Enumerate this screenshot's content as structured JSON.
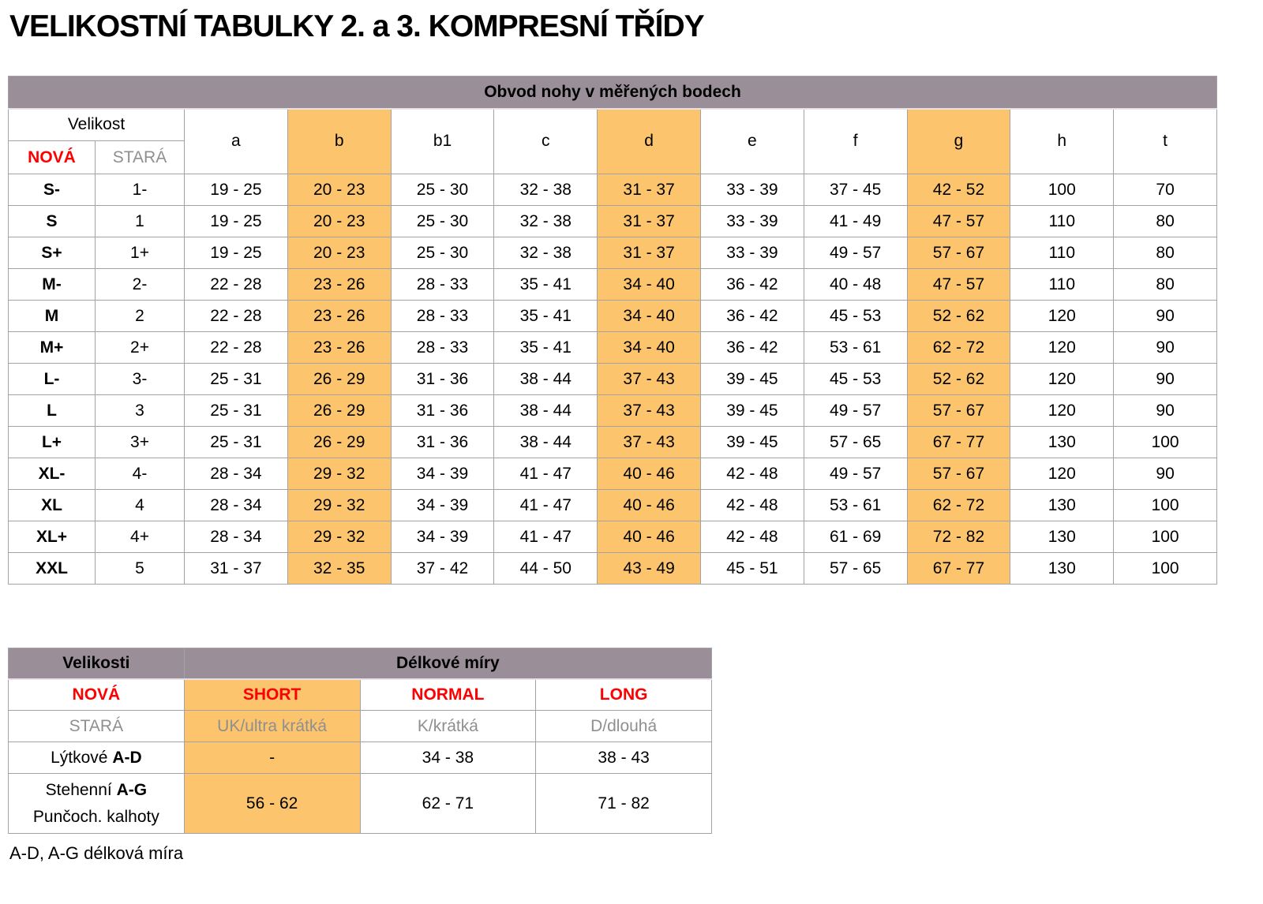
{
  "title": "VELIKOSTNÍ TABULKY 2. a 3. KOMPRESNÍ TŘÍDY",
  "colors": {
    "header_mauve": "#9a8f98",
    "highlight_orange": "#fbc46d",
    "new_red": "#ff0000",
    "old_gray": "#8f8f8f"
  },
  "table1": {
    "title": "Obvod nohy v měřených bodech",
    "size_header": "Velikost",
    "new_label": "NOVÁ",
    "old_label": "STARÁ",
    "columns": [
      {
        "key": "a",
        "highlight": false
      },
      {
        "key": "b",
        "highlight": true
      },
      {
        "key": "b1",
        "highlight": false
      },
      {
        "key": "c",
        "highlight": false
      },
      {
        "key": "d",
        "highlight": true
      },
      {
        "key": "e",
        "highlight": false
      },
      {
        "key": "f",
        "highlight": false
      },
      {
        "key": "g",
        "highlight": true
      },
      {
        "key": "h",
        "highlight": false
      },
      {
        "key": "t",
        "highlight": false
      }
    ],
    "rows": [
      {
        "new": "S-",
        "old": "1-",
        "values": [
          "19 - 25",
          "20 - 23",
          "25 - 30",
          "32 - 38",
          "31 - 37",
          "33 - 39",
          "37 - 45",
          "42 - 52",
          "100",
          "70"
        ]
      },
      {
        "new": "S",
        "old": "1",
        "values": [
          "19 - 25",
          "20 - 23",
          "25 - 30",
          "32 - 38",
          "31 - 37",
          "33 - 39",
          "41 - 49",
          "47 - 57",
          "110",
          "80"
        ]
      },
      {
        "new": "S+",
        "old": "1+",
        "values": [
          "19 - 25",
          "20 - 23",
          "25 - 30",
          "32 - 38",
          "31 - 37",
          "33 - 39",
          "49 - 57",
          "57 - 67",
          "110",
          "80"
        ]
      },
      {
        "new": "M-",
        "old": "2-",
        "values": [
          "22 - 28",
          "23 - 26",
          "28 - 33",
          "35 - 41",
          "34 - 40",
          "36 - 42",
          "40 - 48",
          "47 - 57",
          "110",
          "80"
        ]
      },
      {
        "new": "M",
        "old": "2",
        "values": [
          "22 - 28",
          "23 - 26",
          "28 - 33",
          "35 - 41",
          "34 - 40",
          "36 - 42",
          "45 - 53",
          "52 - 62",
          "120",
          "90"
        ]
      },
      {
        "new": "M+",
        "old": "2+",
        "values": [
          "22 - 28",
          "23 - 26",
          "28 - 33",
          "35 - 41",
          "34 - 40",
          "36 - 42",
          "53 - 61",
          "62 - 72",
          "120",
          "90"
        ]
      },
      {
        "new": "L-",
        "old": "3-",
        "values": [
          "25 - 31",
          "26 - 29",
          "31 - 36",
          "38 - 44",
          "37 - 43",
          "39 - 45",
          "45 - 53",
          "52 - 62",
          "120",
          "90"
        ]
      },
      {
        "new": "L",
        "old": "3",
        "values": [
          "25 - 31",
          "26 - 29",
          "31 - 36",
          "38 - 44",
          "37 - 43",
          "39 - 45",
          "49 - 57",
          "57 - 67",
          "120",
          "90"
        ]
      },
      {
        "new": "L+",
        "old": "3+",
        "values": [
          "25 - 31",
          "26 - 29",
          "31 - 36",
          "38 - 44",
          "37 - 43",
          "39 - 45",
          "57 - 65",
          "67 - 77",
          "130",
          "100"
        ]
      },
      {
        "new": "XL-",
        "old": "4-",
        "values": [
          "28 - 34",
          "29 - 32",
          "34 - 39",
          "41 - 47",
          "40 - 46",
          "42 - 48",
          "49 - 57",
          "57 - 67",
          "120",
          "90"
        ]
      },
      {
        "new": "XL",
        "old": "4",
        "values": [
          "28 - 34",
          "29 - 32",
          "34 - 39",
          "41 - 47",
          "40 - 46",
          "42 - 48",
          "53 - 61",
          "62 - 72",
          "130",
          "100"
        ]
      },
      {
        "new": "XL+",
        "old": "4+",
        "values": [
          "28 - 34",
          "29 - 32",
          "34 - 39",
          "41 - 47",
          "40 - 46",
          "42 - 48",
          "61 - 69",
          "72 - 82",
          "130",
          "100"
        ]
      },
      {
        "new": "XXL",
        "old": "5",
        "values": [
          "31 - 37",
          "32 - 35",
          "37 - 42",
          "44 - 50",
          "43 - 49",
          "45 - 51",
          "57 - 65",
          "67 - 77",
          "130",
          "100"
        ]
      }
    ]
  },
  "table2": {
    "size_header": "Velikosti",
    "length_header": "Délkové míry",
    "new_row": {
      "label": "NOVÁ",
      "cells": [
        "SHORT",
        "NORMAL",
        "LONG"
      ]
    },
    "old_row": {
      "label": "STARÁ",
      "cells": [
        "UK/ultra krátká",
        "K/krátká",
        "D/dlouhá"
      ]
    },
    "calf_row": {
      "label_prefix": "Lýtkové ",
      "label_bold": "A-D",
      "cells": [
        "-",
        "34 - 38",
        "38 - 43"
      ]
    },
    "thigh_row": {
      "label_prefix": "Stehenní ",
      "label_bold": "A-G",
      "label_line2": "Punčoch. kalhoty",
      "cells": [
        "56 - 62",
        "62 - 71",
        "71 - 82"
      ]
    }
  },
  "footnote": "A-D, A-G délková míra"
}
